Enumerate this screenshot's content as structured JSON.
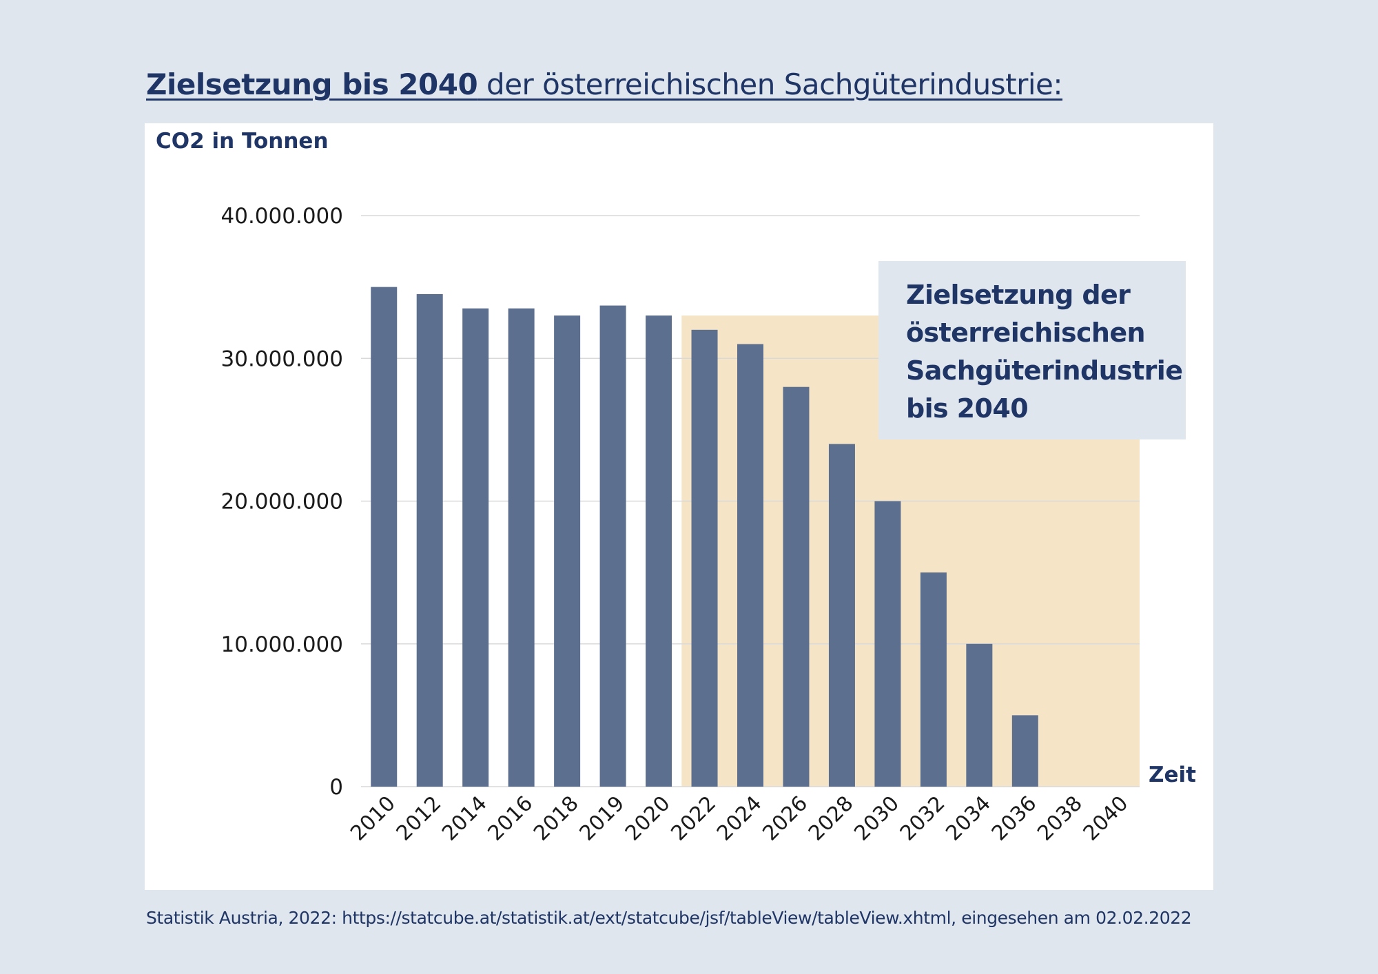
{
  "page": {
    "title_bold": "Zielsetzung bis 2040",
    "title_rest": " der österreichischen Sachgüterindustrie:",
    "source": "Statistik Austria, 2022: https://statcube.at/statistik.at/ext/statcube/jsf/tableView/tableView.xhtml, eingesehen am 02.02.2022"
  },
  "annotation": {
    "lines": [
      "Zielsetzung der",
      "österreichischen",
      "Sachgüterindustrie",
      "bis 2040"
    ]
  },
  "colors": {
    "bar": "#5c6f8f",
    "target_zone": "#f5e5c6",
    "grid": "#d9d9d9",
    "text_dark": "#1f3566"
  },
  "chart_data": {
    "type": "bar",
    "title": "Zielsetzung bis 2040 der österreichischen Sachgüterindustrie:",
    "ylabel": "CO2 in Tonnen",
    "xlabel": "Zeit",
    "categories": [
      "2010",
      "2012",
      "2014",
      "2016",
      "2018",
      "2019",
      "2020",
      "2022",
      "2024",
      "2026",
      "2028",
      "2030",
      "2032",
      "2034",
      "2036",
      "2038",
      "2040"
    ],
    "values": [
      35000000,
      34500000,
      33500000,
      33500000,
      33000000,
      33700000,
      33000000,
      32000000,
      31000000,
      28000000,
      24000000,
      20000000,
      15000000,
      10000000,
      5000000,
      0,
      0
    ],
    "ylim": [
      0,
      40000000
    ],
    "yticks": [
      0,
      10000000,
      20000000,
      30000000,
      40000000
    ],
    "ytick_labels": [
      "0",
      "10.000.000",
      "20.000.000",
      "30.000.000",
      "40.000.000"
    ],
    "grid": true,
    "target_zone": {
      "from": "2022",
      "to": "2040",
      "top_value": 33000000
    }
  }
}
